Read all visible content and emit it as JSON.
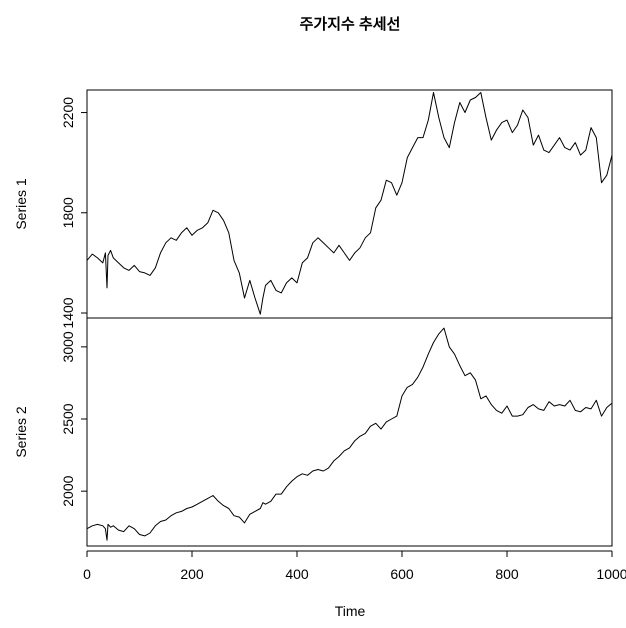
{
  "chart_data": {
    "type": "line",
    "title": "주가지수 추세선",
    "xlabel": "Time",
    "xlim": [
      0,
      1000
    ],
    "x_ticks": [
      0,
      200,
      400,
      600,
      800,
      1000
    ],
    "x_tick_labels": [
      "0",
      "200",
      "400",
      "600",
      "800",
      "1000"
    ],
    "grid": false,
    "panels": [
      {
        "ylabel": "Series 1",
        "ylim": [
          1380,
          2290
        ],
        "y_ticks": [
          1400,
          1800,
          2200
        ],
        "y_tick_labels": [
          "1400",
          "1800",
          "2200"
        ],
        "x": [
          0,
          10,
          20,
          30,
          35,
          38,
          40,
          45,
          50,
          60,
          70,
          80,
          90,
          100,
          110,
          120,
          130,
          140,
          150,
          160,
          170,
          180,
          190,
          200,
          210,
          220,
          230,
          240,
          250,
          260,
          270,
          280,
          290,
          300,
          310,
          320,
          330,
          335,
          340,
          350,
          360,
          370,
          380,
          390,
          400,
          410,
          420,
          430,
          440,
          450,
          460,
          470,
          480,
          490,
          500,
          510,
          520,
          530,
          540,
          550,
          560,
          570,
          580,
          590,
          600,
          610,
          620,
          630,
          640,
          650,
          660,
          670,
          680,
          690,
          700,
          710,
          720,
          730,
          740,
          750,
          760,
          770,
          780,
          790,
          800,
          810,
          820,
          830,
          840,
          850,
          860,
          870,
          880,
          890,
          900,
          910,
          920,
          930,
          940,
          950,
          960,
          970,
          980,
          990,
          1000
        ],
        "values": [
          1610,
          1635,
          1620,
          1600,
          1640,
          1500,
          1630,
          1650,
          1620,
          1600,
          1580,
          1570,
          1590,
          1565,
          1560,
          1550,
          1580,
          1640,
          1680,
          1700,
          1690,
          1720,
          1740,
          1710,
          1730,
          1740,
          1760,
          1810,
          1800,
          1770,
          1720,
          1610,
          1560,
          1460,
          1530,
          1460,
          1395,
          1460,
          1510,
          1530,
          1490,
          1480,
          1520,
          1540,
          1520,
          1600,
          1620,
          1680,
          1700,
          1680,
          1660,
          1640,
          1670,
          1640,
          1610,
          1640,
          1660,
          1700,
          1720,
          1820,
          1850,
          1930,
          1920,
          1870,
          1920,
          2020,
          2060,
          2100,
          2100,
          2170,
          2280,
          2180,
          2100,
          2060,
          2160,
          2240,
          2200,
          2250,
          2260,
          2280,
          2180,
          2090,
          2130,
          2160,
          2170,
          2120,
          2150,
          2210,
          2180,
          2070,
          2110,
          2050,
          2040,
          2070,
          2100,
          2060,
          2050,
          2080,
          2030,
          2050,
          2140,
          2100,
          1920,
          1950,
          2030
        ]
      },
      {
        "ylabel": "Series 2",
        "ylim": [
          1620,
          3200
        ],
        "y_ticks": [
          2000,
          2500,
          3000
        ],
        "y_tick_labels": [
          "2000",
          "2500",
          "3000"
        ],
        "x": [
          0,
          10,
          20,
          30,
          35,
          38,
          40,
          45,
          50,
          60,
          70,
          80,
          90,
          100,
          110,
          120,
          130,
          140,
          150,
          160,
          170,
          180,
          190,
          200,
          210,
          220,
          230,
          240,
          250,
          260,
          270,
          280,
          290,
          300,
          310,
          320,
          330,
          335,
          340,
          350,
          360,
          370,
          380,
          390,
          400,
          410,
          420,
          430,
          440,
          450,
          460,
          470,
          480,
          490,
          500,
          510,
          520,
          530,
          540,
          550,
          560,
          570,
          580,
          590,
          600,
          610,
          620,
          630,
          640,
          650,
          660,
          670,
          680,
          690,
          700,
          710,
          720,
          730,
          740,
          750,
          760,
          770,
          780,
          790,
          800,
          810,
          820,
          830,
          840,
          850,
          860,
          870,
          880,
          890,
          900,
          910,
          920,
          930,
          940,
          950,
          960,
          970,
          980,
          990,
          1000
        ],
        "values": [
          1740,
          1760,
          1770,
          1760,
          1740,
          1660,
          1770,
          1750,
          1760,
          1730,
          1720,
          1760,
          1740,
          1700,
          1690,
          1710,
          1760,
          1790,
          1800,
          1830,
          1850,
          1860,
          1880,
          1890,
          1910,
          1930,
          1950,
          1970,
          1930,
          1900,
          1880,
          1830,
          1820,
          1780,
          1840,
          1860,
          1880,
          1920,
          1910,
          1930,
          1980,
          1980,
          2030,
          2070,
          2100,
          2120,
          2110,
          2140,
          2150,
          2140,
          2160,
          2210,
          2240,
          2280,
          2300,
          2350,
          2380,
          2400,
          2450,
          2470,
          2430,
          2480,
          2500,
          2520,
          2660,
          2720,
          2740,
          2790,
          2860,
          2950,
          3030,
          3090,
          3130,
          3000,
          2950,
          2870,
          2800,
          2820,
          2770,
          2640,
          2660,
          2600,
          2560,
          2540,
          2590,
          2520,
          2520,
          2530,
          2580,
          2600,
          2570,
          2560,
          2620,
          2590,
          2600,
          2590,
          2630,
          2560,
          2550,
          2580,
          2570,
          2630,
          2520,
          2580,
          2610
        ]
      }
    ]
  }
}
